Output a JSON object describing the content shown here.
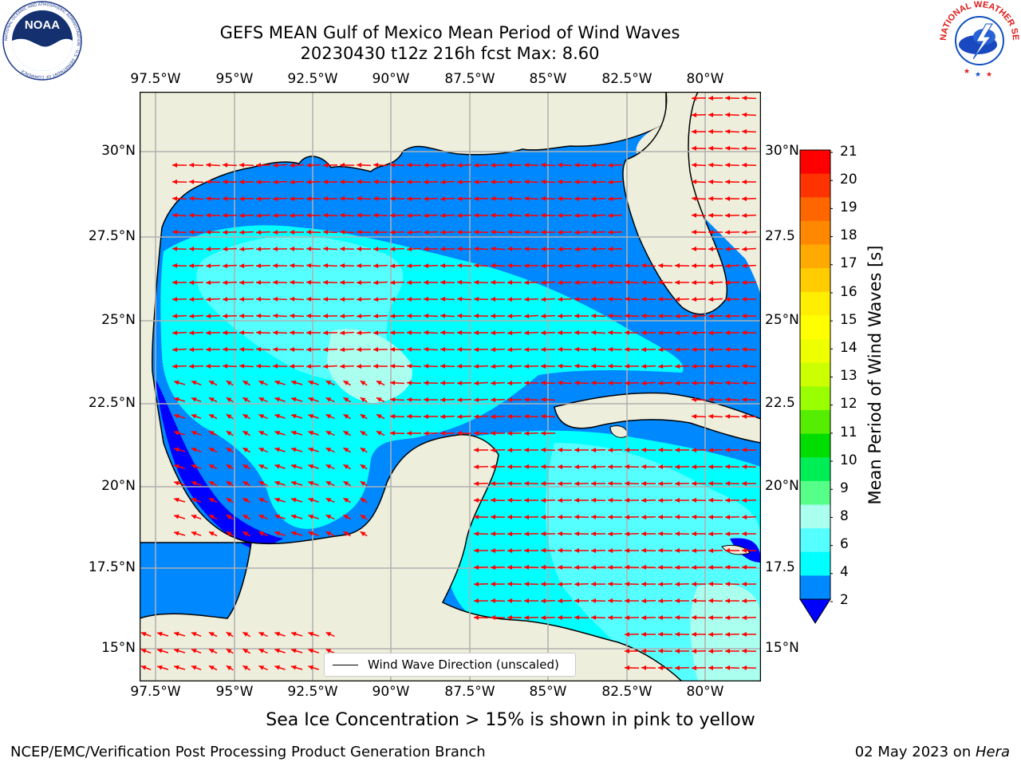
{
  "title_line1": "GEFS MEAN Gulf of Mexico Mean Period of Wind Waves",
  "title_line2": "20230430 t12z 216h fcst   Max: 8.60",
  "logos": {
    "noaa": "NOAA",
    "noaa_ring": "NATIONAL OCEANIC AND ATMOSPHERIC ADMINISTRATION · U.S. DEPARTMENT OF COMMERCE",
    "nws_ring": "NATIONAL WEATHER SERVICE"
  },
  "lon_labels": [
    "97.5°W",
    "95°W",
    "92.5°W",
    "90°W",
    "87.5°W",
    "85°W",
    "82.5°W",
    "80°W"
  ],
  "lat_labels": [
    "30°N",
    "27.5°N",
    "25°N",
    "22.5°N",
    "20°N",
    "17.5°N",
    "15°N"
  ],
  "lat_labels_right": [
    "30°N",
    "27.5",
    "25°N",
    "22.5",
    "20°N",
    "17.5",
    "15°N"
  ],
  "legend": {
    "label": "Wind Wave Direction (unscaled)"
  },
  "colorbar": {
    "label": "Mean Period of Wind Waves [s]",
    "ticks": [
      "21",
      "20",
      "19",
      "18",
      "17",
      "16",
      "15",
      "14",
      "13",
      "12",
      "11",
      "10",
      "9",
      "8",
      "6",
      "4",
      "2"
    ],
    "colors": [
      "#ff0000",
      "#ff3300",
      "#ff6600",
      "#ff8800",
      "#ffaa00",
      "#ffcc00",
      "#ffee00",
      "#ffff00",
      "#eeff00",
      "#ccff00",
      "#99ff00",
      "#55ee00",
      "#00dd00",
      "#00ee55",
      "#55ff88",
      "#aaffee",
      "#55ffff",
      "#00ffff",
      "#0088ff",
      "#0000ff"
    ]
  },
  "annotation": "Sea Ice Concentration > 15% is shown in pink to yellow",
  "footer_left": "NCEP/EMC/Verification Post Processing Product Generation Branch",
  "footer_date": "02 May 2023 on ",
  "footer_host": "Hera",
  "palette": {
    "land": "#eeeedd",
    "light_wave": "#aaffee",
    "cyan": "#55ffff",
    "azure": "#00ffff",
    "blue": "#0088ff",
    "deep": "#0000ff",
    "arrow": "#ff0000",
    "grid": "#b0b0b0"
  }
}
